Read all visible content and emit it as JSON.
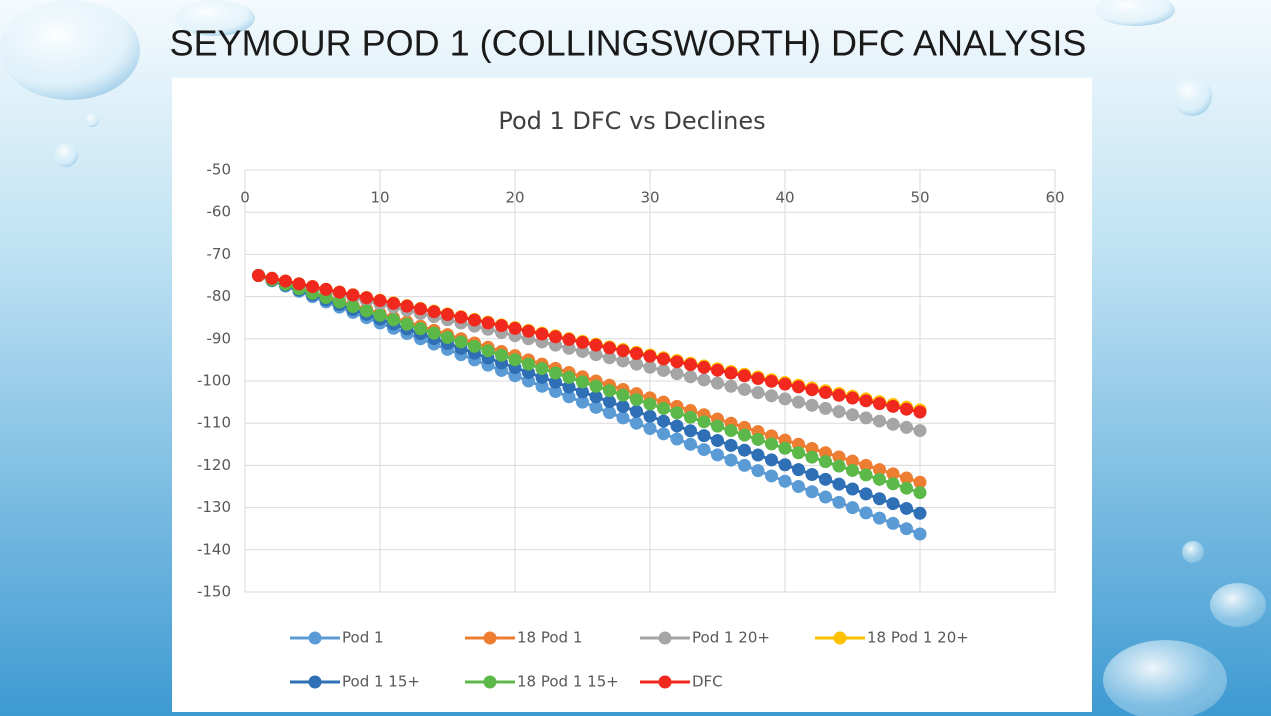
{
  "page_title": "SEYMOUR POD 1 (COLLINGSWORTH) DFC ANALYSIS",
  "chart_data": {
    "type": "line",
    "title": "Pod 1 DFC vs Declines",
    "xlim": [
      0,
      60
    ],
    "xticks": [
      0,
      10,
      20,
      30,
      40,
      50,
      60
    ],
    "ylim": [
      -150,
      -50
    ],
    "yticks": [
      -50,
      -60,
      -70,
      -80,
      -90,
      -100,
      -110,
      -120,
      -130,
      -140,
      -150
    ],
    "grid": true,
    "markers": true,
    "x": [
      1,
      2,
      3,
      4,
      5,
      6,
      7,
      8,
      9,
      10,
      11,
      12,
      13,
      14,
      15,
      16,
      17,
      18,
      19,
      20,
      21,
      22,
      23,
      24,
      25,
      26,
      27,
      28,
      29,
      30,
      31,
      32,
      33,
      34,
      35,
      36,
      37,
      38,
      39,
      40,
      41,
      42,
      43,
      44,
      45,
      46,
      47,
      48,
      49,
      50
    ],
    "series": [
      {
        "name": "Pod 1",
        "color": "#5b9bd5",
        "values": [
          -75,
          -76.25,
          -77.5,
          -78.75,
          -80,
          -81.25,
          -82.5,
          -83.75,
          -85,
          -86.25,
          -87.5,
          -88.75,
          -90,
          -91.25,
          -92.5,
          -93.75,
          -95,
          -96.25,
          -97.5,
          -98.75,
          -100,
          -101.25,
          -102.5,
          -103.75,
          -105,
          -106.25,
          -107.5,
          -108.75,
          -110,
          -111.25,
          -112.5,
          -113.75,
          -115,
          -116.25,
          -117.5,
          -118.75,
          -120,
          -121.25,
          -122.5,
          -123.75,
          -125,
          -126.25,
          -127.5,
          -128.75,
          -130,
          -131.25,
          -132.5,
          -133.75,
          -135,
          -136.25
        ]
      },
      {
        "name": "18 Pod 1",
        "color": "#ed7d31",
        "values": [
          -75,
          -76,
          -77,
          -78,
          -79,
          -80,
          -81,
          -82,
          -83,
          -84,
          -85,
          -86,
          -87,
          -88,
          -89,
          -90,
          -91,
          -92,
          -93,
          -94,
          -95,
          -96,
          -97,
          -98,
          -99,
          -100,
          -101,
          -102,
          -103,
          -104,
          -105,
          -106,
          -107,
          -108,
          -109,
          -110,
          -111,
          -112,
          -113,
          -114,
          -115,
          -116,
          -117,
          -118,
          -119,
          -120,
          -121,
          -122,
          -123,
          -124
        ]
      },
      {
        "name": "Pod 1 20+",
        "color": "#a5a5a5",
        "values": [
          -75,
          -75.75,
          -76.5,
          -77.25,
          -78,
          -78.75,
          -79.5,
          -80.25,
          -81,
          -81.75,
          -82.5,
          -83.25,
          -84,
          -84.75,
          -85.5,
          -86.25,
          -87,
          -87.75,
          -88.5,
          -89.25,
          -90,
          -90.75,
          -91.5,
          -92.25,
          -93,
          -93.75,
          -94.5,
          -95.25,
          -96,
          -96.75,
          -97.5,
          -98.25,
          -99,
          -99.75,
          -100.5,
          -101.25,
          -102,
          -102.75,
          -103.5,
          -104.25,
          -105,
          -105.75,
          -106.5,
          -107.25,
          -108,
          -108.75,
          -109.5,
          -110.25,
          -111,
          -111.75
        ]
      },
      {
        "name": "18 Pod 1 20+",
        "color": "#ffc000",
        "values": [
          -75,
          -75.65,
          -76.3,
          -76.95,
          -77.6,
          -78.25,
          -78.9,
          -79.55,
          -80.2,
          -80.85,
          -81.5,
          -82.15,
          -82.8,
          -83.45,
          -84.1,
          -84.75,
          -85.4,
          -86.05,
          -86.7,
          -87.35,
          -88,
          -88.65,
          -89.3,
          -89.95,
          -90.6,
          -91.25,
          -91.9,
          -92.55,
          -93.2,
          -93.85,
          -94.5,
          -95.15,
          -95.8,
          -96.45,
          -97.1,
          -97.75,
          -98.4,
          -99.05,
          -99.7,
          -100.35,
          -101,
          -101.65,
          -102.3,
          -102.95,
          -103.6,
          -104.25,
          -104.9,
          -105.55,
          -106.2,
          -106.85
        ]
      },
      {
        "name": "Pod 1 15+",
        "color": "#2e6fb5",
        "values": [
          -75,
          -76.15,
          -77.3,
          -78.45,
          -79.6,
          -80.75,
          -81.9,
          -83.05,
          -84.2,
          -85.35,
          -86.5,
          -87.65,
          -88.8,
          -89.95,
          -91.1,
          -92.25,
          -93.4,
          -94.55,
          -95.7,
          -96.85,
          -98,
          -99.15,
          -100.3,
          -101.45,
          -102.6,
          -103.75,
          -104.9,
          -106.05,
          -107.2,
          -108.35,
          -109.5,
          -110.65,
          -111.8,
          -112.95,
          -114.1,
          -115.25,
          -116.4,
          -117.55,
          -118.7,
          -119.85,
          -121,
          -122.15,
          -123.3,
          -124.45,
          -125.6,
          -126.75,
          -127.9,
          -129.05,
          -130.2,
          -131.35
        ]
      },
      {
        "name": "18 Pod 1 15+",
        "color": "#5cb848",
        "values": [
          -75,
          -76.05,
          -77.1,
          -78.15,
          -79.2,
          -80.25,
          -81.3,
          -82.35,
          -83.4,
          -84.45,
          -85.5,
          -86.55,
          -87.6,
          -88.65,
          -89.7,
          -90.75,
          -91.8,
          -92.85,
          -93.9,
          -94.95,
          -96,
          -97.05,
          -98.1,
          -99.15,
          -100.2,
          -101.25,
          -102.3,
          -103.35,
          -104.4,
          -105.45,
          -106.5,
          -107.55,
          -108.6,
          -109.65,
          -110.7,
          -111.75,
          -112.8,
          -113.85,
          -114.9,
          -115.95,
          -117,
          -118.05,
          -119.1,
          -120.15,
          -121.2,
          -122.25,
          -123.3,
          -124.35,
          -125.4,
          -126.45
        ]
      },
      {
        "name": "DFC",
        "color": "#f0281e",
        "values": [
          -75,
          -75.66,
          -76.32,
          -76.98,
          -77.64,
          -78.3,
          -78.96,
          -79.62,
          -80.28,
          -80.94,
          -81.6,
          -82.26,
          -82.92,
          -83.58,
          -84.24,
          -84.9,
          -85.56,
          -86.22,
          -86.88,
          -87.54,
          -88.2,
          -88.86,
          -89.52,
          -90.18,
          -90.84,
          -91.5,
          -92.16,
          -92.82,
          -93.48,
          -94.14,
          -94.8,
          -95.46,
          -96.12,
          -96.78,
          -97.44,
          -98.1,
          -98.76,
          -99.42,
          -100.08,
          -100.74,
          -101.4,
          -102.06,
          -102.72,
          -103.38,
          -104.04,
          -104.7,
          -105.36,
          -106.02,
          -106.68,
          -107.34
        ]
      }
    ]
  }
}
